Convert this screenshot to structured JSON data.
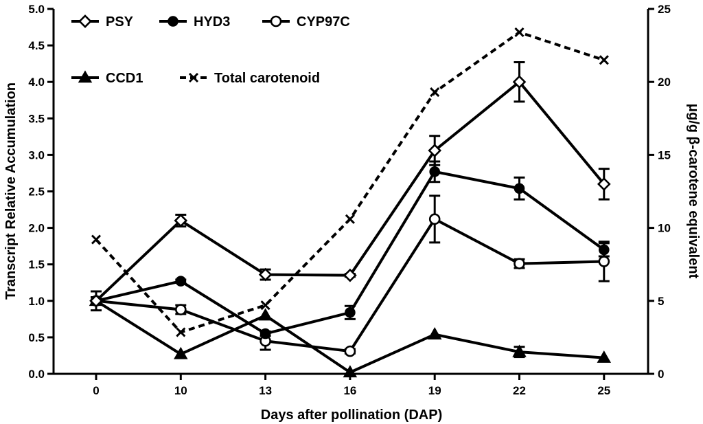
{
  "chart_data": {
    "type": "line",
    "title": "",
    "xlabel": "Days after pollination (DAP)",
    "ylabel": "Transcript Relative Accumulation",
    "y2label": "μg/g β-carotene equivalent",
    "categories": [
      "0",
      "10",
      "13",
      "16",
      "19",
      "22",
      "25"
    ],
    "ylim": [
      0,
      5.0
    ],
    "y2lim": [
      0,
      25
    ],
    "yticks": [
      "0.0",
      "0.5",
      "1.0",
      "1.5",
      "2.0",
      "2.5",
      "3.0",
      "3.5",
      "4.0",
      "4.5",
      "5.0"
    ],
    "y2ticks": [
      "0",
      "5",
      "10",
      "15",
      "20",
      "25"
    ],
    "legend_position": "top-left",
    "series": [
      {
        "name": "PSY",
        "axis": "left",
        "marker": "diamond-open",
        "line": "solid",
        "values": [
          1.0,
          2.1,
          1.36,
          1.35,
          3.06,
          4.0,
          2.6
        ],
        "errors": [
          0.05,
          0.08,
          0.07,
          0.02,
          0.2,
          0.27,
          0.21
        ]
      },
      {
        "name": "HYD3",
        "axis": "left",
        "marker": "circle-filled",
        "line": "solid",
        "values": [
          1.0,
          1.27,
          0.55,
          0.84,
          2.77,
          2.54,
          1.7
        ],
        "errors": [
          0.05,
          0.02,
          0.03,
          0.09,
          0.14,
          0.15,
          0.09
        ]
      },
      {
        "name": "CYP97C",
        "axis": "left",
        "marker": "circle-open",
        "line": "solid",
        "values": [
          1.0,
          0.88,
          0.45,
          0.31,
          2.12,
          1.51,
          1.54
        ],
        "errors": [
          0.13,
          0.06,
          0.12,
          0.03,
          0.32,
          0.06,
          0.27
        ]
      },
      {
        "name": "CCD1",
        "axis": "left",
        "marker": "triangle-filled",
        "line": "solid",
        "values": [
          1.0,
          0.27,
          0.8,
          0.02,
          0.54,
          0.3,
          0.22
        ],
        "errors": [
          0.0,
          0.0,
          0.0,
          0.0,
          0.0,
          0.07,
          0.0
        ]
      },
      {
        "name": "Total carotenoid",
        "axis": "right",
        "marker": "x",
        "line": "dashed",
        "values": [
          9.2,
          2.85,
          4.7,
          10.6,
          19.3,
          23.4,
          21.5
        ],
        "errors": [
          0,
          0,
          0,
          0,
          0,
          0,
          0
        ]
      }
    ]
  }
}
